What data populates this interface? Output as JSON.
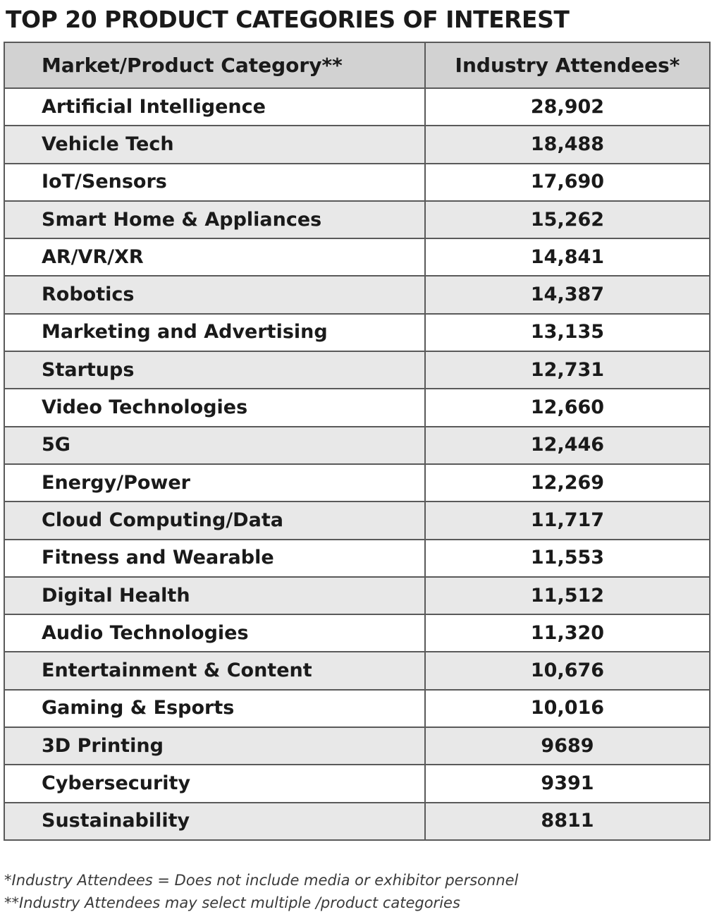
{
  "title": "TOP 20 PRODUCT CATEGORIES OF INTEREST",
  "table": {
    "headers": [
      "Market/Product Category**",
      "Industry Attendees*"
    ],
    "rows": [
      [
        "Artificial Intelligence",
        "28,902"
      ],
      [
        "Vehicle Tech",
        "18,488"
      ],
      [
        "IoT/Sensors",
        "17,690"
      ],
      [
        "Smart Home & Appliances",
        "15,262"
      ],
      [
        "AR/VR/XR",
        "14,841"
      ],
      [
        "Robotics",
        "14,387"
      ],
      [
        "Marketing and Advertising",
        "13,135"
      ],
      [
        "Startups",
        "12,731"
      ],
      [
        "Video Technologies",
        "12,660"
      ],
      [
        "5G",
        "12,446"
      ],
      [
        "Energy/Power",
        "12,269"
      ],
      [
        "Cloud Computing/Data",
        "11,717"
      ],
      [
        "Fitness and Wearable",
        "11,553"
      ],
      [
        "Digital Health",
        "11,512"
      ],
      [
        "Audio Technologies",
        "11,320"
      ],
      [
        "Entertainment & Content",
        "10,676"
      ],
      [
        "Gaming & Esports",
        "10,016"
      ],
      [
        "3D Printing",
        "9689"
      ],
      [
        "Cybersecurity",
        "9391"
      ],
      [
        "Sustainability",
        "8811"
      ]
    ]
  },
  "footnotes": [
    "*Industry Attendees = Does not include media or exhibitor personnel",
    "**Industry Attendees may select multiple /product categories"
  ],
  "colors": {
    "header_background": "#d2d2d2",
    "row_alt_background": "#e8e8e8",
    "border": "#5a5a5a"
  }
}
